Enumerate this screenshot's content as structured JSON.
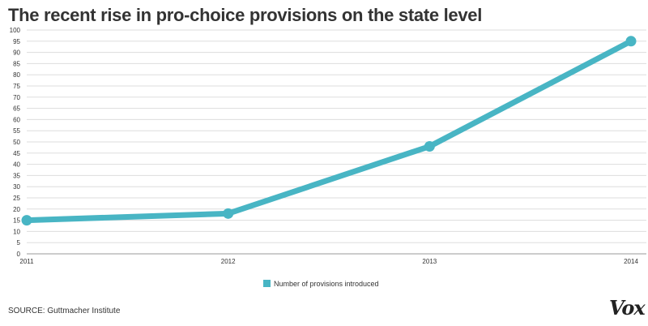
{
  "header": {
    "title": "The recent rise in pro-choice provisions on the state level"
  },
  "footer": {
    "source": "SOURCE: Guttmacher Institute",
    "logo": "Vox"
  },
  "colors": {
    "series": "#48b5c4",
    "grid": "#dddddd",
    "text": "#333333"
  },
  "chart_data": {
    "type": "line",
    "title": "The recent rise in pro-choice provisions on the state level",
    "xlabel": "",
    "ylabel": "",
    "x": [
      "2011",
      "2012",
      "2013",
      "2014"
    ],
    "series": [
      {
        "name": "Number of provisions introduced",
        "values": [
          15,
          18,
          48,
          95
        ]
      }
    ],
    "ylim": [
      0,
      100
    ],
    "yticks": [
      0,
      5,
      10,
      15,
      20,
      25,
      30,
      35,
      40,
      45,
      50,
      55,
      60,
      65,
      70,
      75,
      80,
      85,
      90,
      95,
      100
    ],
    "grid": true,
    "legend": "bottom-center"
  }
}
